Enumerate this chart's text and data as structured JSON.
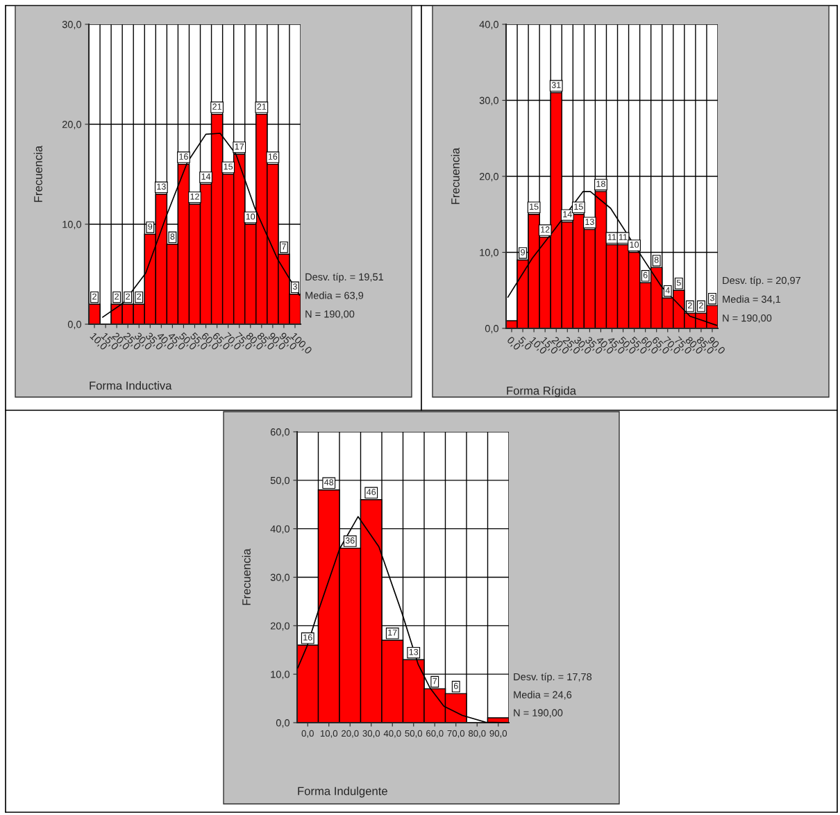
{
  "chart_data": [
    {
      "type": "histogram",
      "xlabel": "Forma Inductiva",
      "ylabel": "Frecuencia",
      "color": "#ff0000",
      "grid": true,
      "bins": [
        7.5,
        12.5,
        17.5,
        22.5,
        27.5,
        32.5,
        37.5,
        42.5,
        47.5,
        52.5,
        57.5,
        62.5,
        67.5,
        72.5,
        77.5,
        82.5,
        87.5,
        92.5,
        97.5,
        102.5
      ],
      "values": [
        2,
        0,
        2,
        2,
        2,
        9,
        13,
        8,
        16,
        12,
        14,
        21,
        15,
        17,
        10,
        21,
        16,
        7,
        3
      ],
      "value_labels": [
        "2",
        null,
        "2",
        "2",
        "2",
        "9",
        "13",
        "8",
        "16",
        "12",
        "14",
        "21",
        "15",
        "17",
        "10",
        "21",
        "16",
        "7",
        "3"
      ],
      "series": [
        {
          "type": "line",
          "color": "#000000",
          "x": [
            13.7,
            22.8,
            33,
            42.4,
            51.7,
            60,
            66.4,
            73.5,
            82,
            92.2,
            102
          ],
          "values": [
            0.7,
            2.1,
            5.1,
            10.9,
            16.2,
            19.0,
            19.1,
            17.0,
            11.6,
            6.5,
            2.9
          ]
        }
      ],
      "xlim": [
        7.5,
        102.5
      ],
      "xticks": [
        {
          "value": 10,
          "label": "10,0"
        },
        {
          "value": 15,
          "label": "15,0"
        },
        {
          "value": 20,
          "label": "20,0"
        },
        {
          "value": 25,
          "label": "25,0"
        },
        {
          "value": 30,
          "label": "30,0"
        },
        {
          "value": 35,
          "label": "35,0"
        },
        {
          "value": 40,
          "label": "40,0"
        },
        {
          "value": 45,
          "label": "45,0"
        },
        {
          "value": 50,
          "label": "50,0"
        },
        {
          "value": 55,
          "label": "55,0"
        },
        {
          "value": 60,
          "label": "60,0"
        },
        {
          "value": 65,
          "label": "65,0"
        },
        {
          "value": 70,
          "label": "70,0"
        },
        {
          "value": 75,
          "label": "75,0"
        },
        {
          "value": 80,
          "label": "80,0"
        },
        {
          "value": 85,
          "label": "85,0"
        },
        {
          "value": 90,
          "label": "90,0"
        },
        {
          "value": 95,
          "label": "95,0"
        },
        {
          "value": 100,
          "label": "100,0"
        }
      ],
      "ylim": [
        0,
        30
      ],
      "yticks": [
        {
          "value": 0,
          "label": "0,0"
        },
        {
          "value": 10,
          "label": "10,0"
        },
        {
          "value": 20,
          "label": "20,0"
        },
        {
          "value": 30,
          "label": "30,0"
        }
      ],
      "annotations": [
        "Desv. típ. = 19,51",
        "Media = 63,9",
        "N = 190,00"
      ]
    },
    {
      "type": "histogram",
      "xlabel": "Forma Rígida",
      "ylabel": "Frecuencia",
      "color": "#ff0000",
      "grid": true,
      "bins": [
        -2.5,
        2.5,
        7.5,
        12.5,
        17.5,
        22.5,
        27.5,
        32.5,
        37.5,
        42.5,
        47.5,
        52.5,
        57.5,
        62.5,
        67.5,
        72.5,
        77.5,
        82.5,
        87.5,
        92.5
      ],
      "values": [
        1,
        9,
        15,
        12,
        31,
        14,
        15,
        13,
        18,
        11,
        11,
        10,
        6,
        8,
        4,
        5,
        2,
        2,
        3
      ],
      "value_labels": [
        null,
        "9",
        "15",
        "12",
        "31",
        "14",
        "15",
        "13",
        "18",
        "11",
        "11",
        "10",
        "6",
        "8",
        "4",
        "5",
        "2",
        "2",
        "3"
      ],
      "series": [
        {
          "type": "line",
          "color": "#000000",
          "x": [
            -1.7,
            9.2,
            19.5,
            32,
            35.3,
            44.4,
            56.9,
            67.2,
            80,
            92
          ],
          "values": [
            4.1,
            9.2,
            13.1,
            18.0,
            18.0,
            15.8,
            10.1,
            5.5,
            1.6,
            0.4
          ]
        }
      ],
      "xlim": [
        -2.5,
        92.5
      ],
      "xticks": [
        {
          "value": 0,
          "label": "0,0"
        },
        {
          "value": 5,
          "label": "5,0"
        },
        {
          "value": 10,
          "label": "10,0"
        },
        {
          "value": 15,
          "label": "15,0"
        },
        {
          "value": 20,
          "label": "20,0"
        },
        {
          "value": 25,
          "label": "25,0"
        },
        {
          "value": 30,
          "label": "30,0"
        },
        {
          "value": 35,
          "label": "35,0"
        },
        {
          "value": 40,
          "label": "40,0"
        },
        {
          "value": 45,
          "label": "45,0"
        },
        {
          "value": 50,
          "label": "50,0"
        },
        {
          "value": 55,
          "label": "55,0"
        },
        {
          "value": 60,
          "label": "60,0"
        },
        {
          "value": 65,
          "label": "65,0"
        },
        {
          "value": 70,
          "label": "70,0"
        },
        {
          "value": 75,
          "label": "75,0"
        },
        {
          "value": 80,
          "label": "80,0"
        },
        {
          "value": 85,
          "label": "85,0"
        },
        {
          "value": 90,
          "label": "90,0"
        }
      ],
      "ylim": [
        0,
        40
      ],
      "yticks": [
        {
          "value": 0,
          "label": "0,0"
        },
        {
          "value": 10,
          "label": "10,0"
        },
        {
          "value": 20,
          "label": "20,0"
        },
        {
          "value": 30,
          "label": "30,0"
        },
        {
          "value": 40,
          "label": "40,0"
        }
      ],
      "annotations": [
        "Desv. típ. = 20,97",
        "Media = 34,1",
        "N = 190,00"
      ]
    },
    {
      "type": "histogram",
      "xlabel": "Forma Indulgente",
      "ylabel": "Frecuencia",
      "color": "#ff0000",
      "grid": true,
      "bins": [
        -5,
        5,
        15,
        25,
        35,
        45,
        55,
        65,
        75,
        85,
        95
      ],
      "values": [
        16,
        48,
        36,
        46,
        17,
        13,
        7,
        6,
        0,
        1
      ],
      "value_labels": [
        "16",
        "48",
        "36",
        "46",
        "17",
        "13",
        "7",
        "6",
        null,
        null
      ],
      "series": [
        {
          "type": "line",
          "color": "#000000",
          "x": [
            -4.7,
            -0.3,
            4.6,
            15,
            23.8,
            33.6,
            44.6,
            52.2,
            57.7,
            64.3,
            73,
            84,
            94.7
          ],
          "values": [
            11.3,
            15.8,
            22.5,
            35.8,
            42.5,
            36.3,
            22.5,
            12,
            7.2,
            3.4,
            1.5,
            0.1,
            0
          ]
        }
      ],
      "xlim": [
        -5,
        95
      ],
      "xticks": [
        {
          "value": 0,
          "label": "0,0"
        },
        {
          "value": 10,
          "label": "10,0"
        },
        {
          "value": 20,
          "label": "20,0"
        },
        {
          "value": 30,
          "label": "30,0"
        },
        {
          "value": 40,
          "label": "40,0"
        },
        {
          "value": 50,
          "label": "50,0"
        },
        {
          "value": 60,
          "label": "60,0"
        },
        {
          "value": 70,
          "label": "70,0"
        },
        {
          "value": 80,
          "label": "80,0"
        },
        {
          "value": 90,
          "label": "90,0"
        }
      ],
      "ylim": [
        0,
        60
      ],
      "yticks": [
        {
          "value": 0,
          "label": "0,0"
        },
        {
          "value": 10,
          "label": "10,0"
        },
        {
          "value": 20,
          "label": "20,0"
        },
        {
          "value": 30,
          "label": "30,0"
        },
        {
          "value": 40,
          "label": "40,0"
        },
        {
          "value": 50,
          "label": "50,0"
        },
        {
          "value": 60,
          "label": "60,0"
        }
      ],
      "annotations": [
        "Desv. típ. = 17,78",
        "Media = 24,6",
        "N = 190,00"
      ]
    }
  ]
}
